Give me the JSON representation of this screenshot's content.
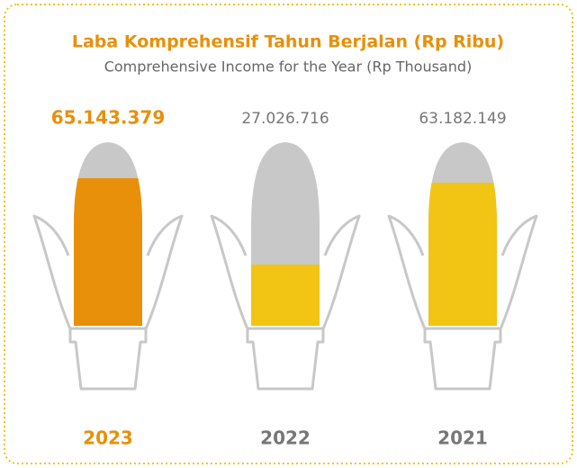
{
  "chart_data": {
    "type": "bar",
    "title": "Laba Komprehensif Tahun Berjalan (Rp Ribu)",
    "subtitle": "Comprehensive Income for the Year (Rp Thousand)",
    "categories": [
      "2023",
      "2022",
      "2021"
    ],
    "values": [
      65143379,
      27026716,
      63182149
    ],
    "value_labels": [
      "65.143.379",
      "27.026.716",
      "63.182.149"
    ],
    "colors": [
      "#E8900A",
      "#F2C413",
      "#F2C413"
    ]
  }
}
